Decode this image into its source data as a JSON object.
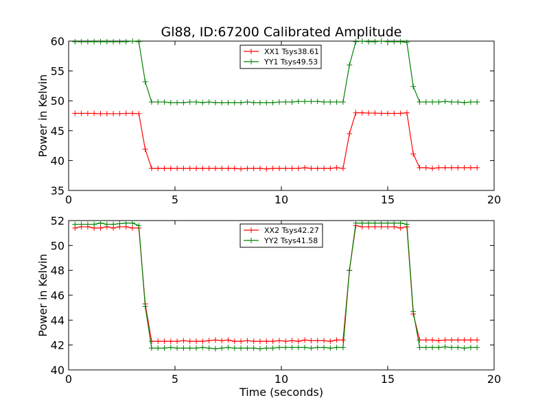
{
  "chart_data": [
    {
      "type": "line",
      "title": "Gl88, ID:67200 Calibrated Amplitude",
      "xlabel": "",
      "ylabel": "Power in Kelvin",
      "xlim": [
        0,
        20
      ],
      "ylim": [
        35,
        60
      ],
      "xticks": [
        0,
        5,
        10,
        15,
        20
      ],
      "yticks": [
        35,
        40,
        45,
        50,
        55,
        60
      ],
      "grid": false,
      "legend": "top-center",
      "x": [
        0.3,
        0.6,
        0.9,
        1.2,
        1.5,
        1.8,
        2.1,
        2.4,
        2.7,
        3.0,
        3.3,
        3.6,
        3.9,
        4.2,
        4.5,
        4.8,
        5.1,
        5.4,
        5.7,
        6.0,
        6.3,
        6.6,
        6.9,
        7.2,
        7.5,
        7.8,
        8.1,
        8.4,
        8.7,
        9.0,
        9.3,
        9.6,
        9.9,
        10.2,
        10.5,
        10.8,
        11.1,
        11.4,
        11.7,
        12.0,
        12.3,
        12.6,
        12.9,
        13.2,
        13.5,
        13.8,
        14.1,
        14.4,
        14.7,
        15.0,
        15.3,
        15.6,
        15.9,
        16.2,
        16.5,
        16.8,
        17.1,
        17.4,
        17.7,
        18.0,
        18.3,
        18.6,
        18.9,
        19.2
      ],
      "series": [
        {
          "name": "XX1 Tsys38.61",
          "color": "#ff0000",
          "values": [
            47.9,
            47.9,
            47.9,
            47.9,
            47.85,
            47.85,
            47.85,
            47.85,
            47.9,
            47.9,
            47.85,
            41.9,
            38.7,
            38.7,
            38.7,
            38.7,
            38.7,
            38.7,
            38.7,
            38.7,
            38.7,
            38.7,
            38.7,
            38.7,
            38.7,
            38.7,
            38.6,
            38.7,
            38.7,
            38.7,
            38.6,
            38.7,
            38.7,
            38.7,
            38.7,
            38.7,
            38.8,
            38.7,
            38.7,
            38.7,
            38.7,
            38.8,
            38.7,
            44.5,
            48.0,
            48.0,
            47.95,
            47.95,
            47.9,
            47.9,
            47.9,
            47.9,
            48.0,
            41.1,
            38.8,
            38.8,
            38.7,
            38.8,
            38.8,
            38.8,
            38.8,
            38.8,
            38.8,
            38.8
          ]
        },
        {
          "name": "YY1 Tsys49.53",
          "color": "#008000",
          "values": [
            59.9,
            59.9,
            59.9,
            59.9,
            59.9,
            59.9,
            59.9,
            59.9,
            59.9,
            60.0,
            59.9,
            53.2,
            49.8,
            49.8,
            49.8,
            49.7,
            49.7,
            49.7,
            49.8,
            49.8,
            49.7,
            49.8,
            49.7,
            49.7,
            49.7,
            49.7,
            49.7,
            49.8,
            49.7,
            49.7,
            49.7,
            49.7,
            49.8,
            49.8,
            49.8,
            49.9,
            49.9,
            49.9,
            49.9,
            49.8,
            49.8,
            49.8,
            49.8,
            56.0,
            59.9,
            60.0,
            59.9,
            59.9,
            60.0,
            59.9,
            59.9,
            59.9,
            59.8,
            52.4,
            49.8,
            49.8,
            49.8,
            49.8,
            49.9,
            49.8,
            49.8,
            49.7,
            49.8,
            49.8
          ]
        }
      ]
    },
    {
      "type": "line",
      "title": "",
      "xlabel": "Time (seconds)",
      "ylabel": "Power in Kelvin",
      "xlim": [
        0,
        20
      ],
      "ylim": [
        40,
        52
      ],
      "xticks": [
        0,
        5,
        10,
        15,
        20
      ],
      "yticks": [
        40,
        42,
        44,
        46,
        48,
        50,
        52
      ],
      "grid": false,
      "legend": "top-center",
      "x": [
        0.3,
        0.6,
        0.9,
        1.2,
        1.5,
        1.8,
        2.1,
        2.4,
        2.7,
        3.0,
        3.3,
        3.6,
        3.9,
        4.2,
        4.5,
        4.8,
        5.1,
        5.4,
        5.7,
        6.0,
        6.3,
        6.6,
        6.9,
        7.2,
        7.5,
        7.8,
        8.1,
        8.4,
        8.7,
        9.0,
        9.3,
        9.6,
        9.9,
        10.2,
        10.5,
        10.8,
        11.1,
        11.4,
        11.7,
        12.0,
        12.3,
        12.6,
        12.9,
        13.2,
        13.5,
        13.8,
        14.1,
        14.4,
        14.7,
        15.0,
        15.3,
        15.6,
        15.9,
        16.2,
        16.5,
        16.8,
        17.1,
        17.4,
        17.7,
        18.0,
        18.3,
        18.6,
        18.9,
        19.2
      ],
      "series": [
        {
          "name": "XX2 Tsys42.27",
          "color": "#ff0000",
          "values": [
            51.4,
            51.5,
            51.5,
            51.4,
            51.4,
            51.5,
            51.4,
            51.5,
            51.5,
            51.4,
            51.4,
            45.3,
            42.3,
            42.3,
            42.3,
            42.3,
            42.3,
            42.35,
            42.3,
            42.3,
            42.3,
            42.35,
            42.4,
            42.35,
            42.4,
            42.3,
            42.3,
            42.35,
            42.3,
            42.3,
            42.3,
            42.3,
            42.35,
            42.3,
            42.35,
            42.3,
            42.4,
            42.35,
            42.35,
            42.35,
            42.3,
            42.4,
            42.4,
            48.0,
            51.6,
            51.5,
            51.5,
            51.5,
            51.5,
            51.5,
            51.5,
            51.4,
            51.5,
            44.5,
            42.4,
            42.4,
            42.4,
            42.35,
            42.4,
            42.4,
            42.4,
            42.4,
            42.4,
            42.4
          ]
        },
        {
          "name": "YY2 Tsys41.58",
          "color": "#008000",
          "values": [
            51.7,
            51.7,
            51.7,
            51.7,
            51.8,
            51.7,
            51.7,
            51.75,
            51.8,
            51.8,
            51.6,
            45.1,
            41.75,
            41.75,
            41.75,
            41.8,
            41.75,
            41.75,
            41.75,
            41.75,
            41.8,
            41.75,
            41.7,
            41.75,
            41.8,
            41.75,
            41.75,
            41.75,
            41.75,
            41.7,
            41.75,
            41.75,
            41.8,
            41.8,
            41.8,
            41.8,
            41.8,
            41.75,
            41.8,
            41.8,
            41.75,
            41.8,
            41.8,
            48.0,
            51.8,
            51.8,
            51.8,
            51.8,
            51.8,
            51.8,
            51.8,
            51.8,
            51.7,
            44.7,
            41.8,
            41.8,
            41.8,
            41.8,
            41.85,
            41.8,
            41.8,
            41.75,
            41.8,
            41.8
          ]
        }
      ]
    }
  ]
}
